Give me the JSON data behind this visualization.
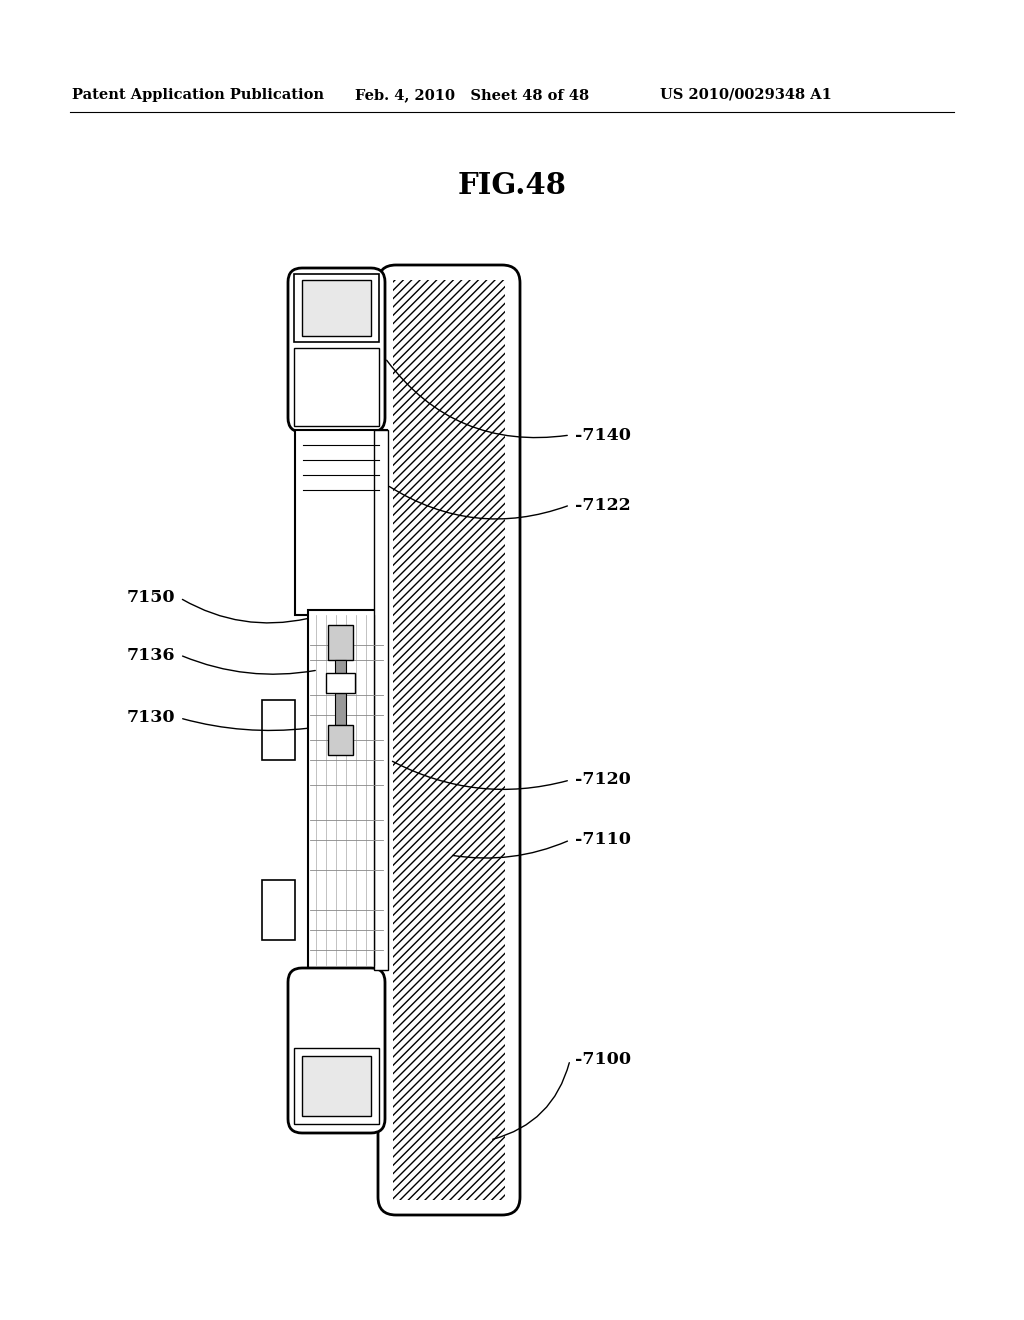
{
  "title": "FIG.48",
  "header_left": "Patent Application Publication",
  "header_mid": "Feb. 4, 2010   Sheet 48 of 48",
  "header_right": "US 2010/0029348 A1",
  "bg_color": "#ffffff",
  "line_color": "#000000"
}
